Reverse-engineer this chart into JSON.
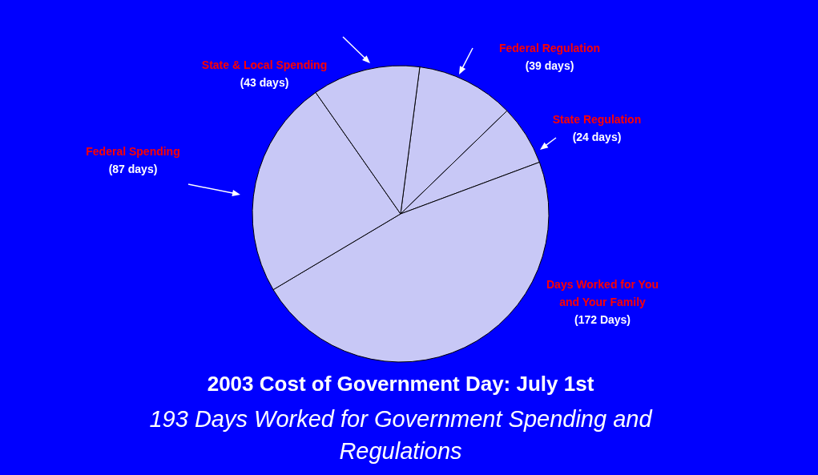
{
  "chart_data": {
    "type": "pie",
    "title": "2003 Cost of Government Day: July 1st",
    "subtitle": "193 Days Worked for Government Spending and Regulations",
    "categories": [
      "Federal Regulation",
      "State Regulation",
      "Days Worked for You and Your Family",
      "Federal Spending",
      "State & Local Spending"
    ],
    "values": [
      39,
      24,
      172,
      87,
      43
    ],
    "value_labels": [
      "(39 days)",
      "(24 days)",
      "(172 Days)",
      "(87 days)",
      "(43 days)"
    ],
    "colors": [
      "#c8c8f6",
      "#c8c8f6",
      "#c8c8f6",
      "#c8c8f6",
      "#c8c8f6"
    ]
  }
}
